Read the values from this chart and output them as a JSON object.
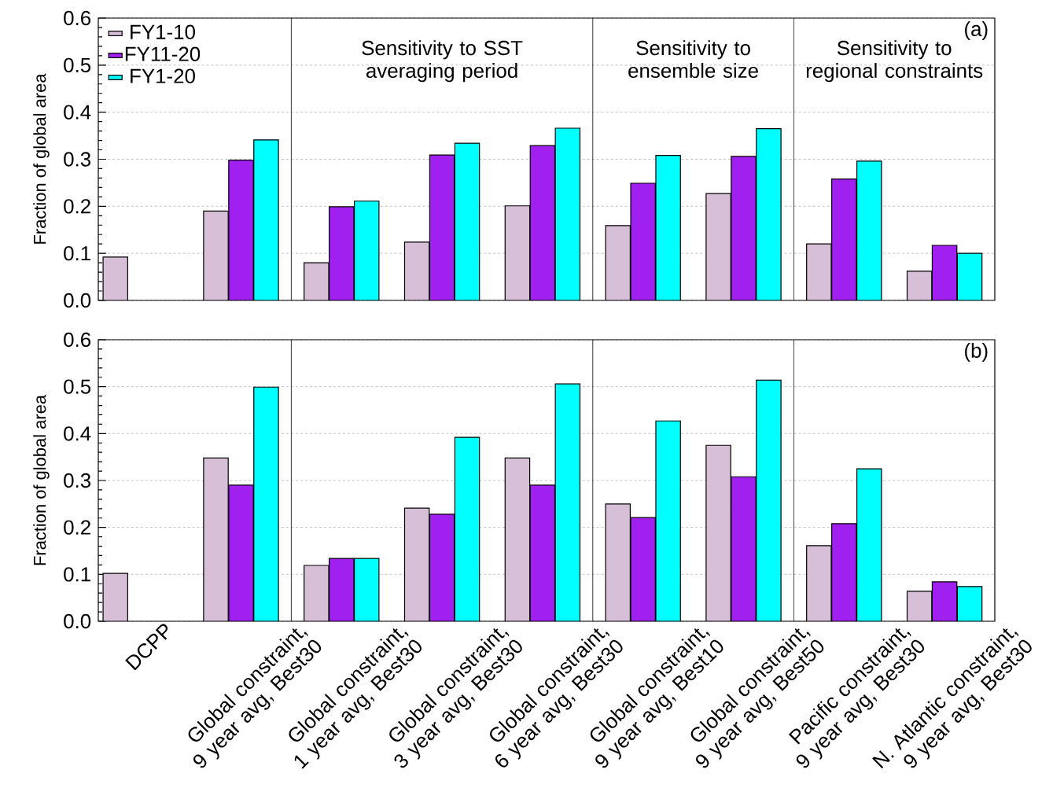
{
  "chart_data": [
    {
      "type": "bar",
      "ylabel": "Fraction of global area",
      "categories": [
        null,
        null,
        null,
        null,
        null,
        null,
        null,
        null,
        null
      ],
      "series": [
        {
          "name": "FY1-10",
          "color": "#d8bfd8",
          "values": [
            0.092,
            0.19,
            0.08,
            0.124,
            0.201,
            0.159,
            0.227,
            0.12,
            0.062
          ]
        },
        {
          "name": "FY11-20",
          "color": "#a020f0",
          "values": [
            null,
            0.298,
            0.199,
            0.309,
            0.329,
            0.249,
            0.306,
            0.258,
            0.117
          ]
        },
        {
          "name": "FY1-20",
          "color": "#00ffff",
          "values": [
            null,
            0.341,
            0.211,
            0.334,
            0.366,
            0.308,
            0.365,
            0.296,
            0.1
          ]
        }
      ],
      "ylim": [
        0,
        0.6
      ],
      "yticks": [
        {
          "value": 0,
          "label": "0.0"
        },
        0.1,
        0.2,
        0.3,
        0.4,
        0.5,
        0.6
      ],
      "grid": "y",
      "legend": "top left",
      "tick_labels": "y",
      "annotations": [
        "(a)",
        "Sensitivity to SST averaging period",
        "Sensitivity to ensemble size",
        "Sensitivity to regional constraints"
      ]
    },
    {
      "type": "bar",
      "ylabel": "Fraction of global area",
      "categories": [
        "DCPP",
        "Global constraint, 9 year avg, Best30",
        "Global constraint, 1 year avg, Best30",
        "Global constraint, 3 year avg, Best30",
        "Global constraint, 6 year avg, Best30",
        "Global constraint, 9 year avg, Best10",
        "Global constraint, 9 year avg, Best50",
        "Pacific constraint, 9 year avg, Best30",
        "N. Atlantic constraint, 9 year avg, Best30"
      ],
      "series": [
        {
          "color": "#d8bfd8",
          "values": [
            0.102,
            0.348,
            0.119,
            0.241,
            0.348,
            0.25,
            0.375,
            0.161,
            0.064
          ]
        },
        {
          "color": "#a020f0",
          "values": [
            null,
            0.29,
            0.134,
            0.228,
            0.29,
            0.221,
            0.308,
            0.208,
            0.084
          ]
        },
        {
          "color": "#00ffff",
          "values": [
            null,
            0.499,
            0.134,
            0.392,
            0.506,
            0.427,
            0.514,
            0.325,
            0.074
          ]
        }
      ],
      "ylim": [
        0,
        0.6
      ],
      "yticks": [
        {
          "value": 0,
          "label": "0.0"
        },
        0.1,
        0.2,
        0.3,
        0.4,
        0.5,
        0.6
      ],
      "grid": "y",
      "annotations": [
        "(b)"
      ]
    }
  ]
}
